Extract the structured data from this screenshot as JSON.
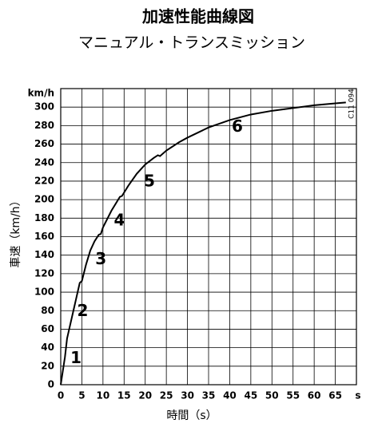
{
  "chart_data": {
    "type": "line",
    "title": "加速性能曲線図",
    "subtitle": "マニュアル・トランスミッション",
    "x_label": "時間（s）",
    "y_label": "車速（km/h）",
    "x_unit": "s",
    "y_unit": "km/h",
    "code": "C11 094",
    "color": "#000000",
    "grid": true,
    "x": [
      0,
      1,
      1.5,
      2,
      3,
      4,
      4.5,
      5,
      6,
      7,
      8,
      9,
      9.5,
      10,
      12,
      14,
      14.5,
      16,
      18,
      20,
      22,
      23,
      23.5,
      25,
      28,
      30,
      35,
      40,
      45,
      50,
      55,
      60,
      65,
      67.5
    ],
    "values": [
      0,
      30,
      50,
      60,
      80,
      100,
      110,
      112,
      130,
      145,
      155,
      162,
      163,
      170,
      188,
      203,
      204,
      215,
      228,
      238,
      245,
      248,
      247,
      253,
      262,
      267,
      278,
      286,
      292,
      296,
      299,
      302,
      304,
      305
    ],
    "annotations": [
      {
        "text": "1",
        "x": 3.6,
        "y": 28
      },
      {
        "text": "2",
        "x": 5.2,
        "y": 79
      },
      {
        "text": "3",
        "x": 9.5,
        "y": 135
      },
      {
        "text": "4",
        "x": 13.9,
        "y": 177
      },
      {
        "text": "5",
        "x": 21,
        "y": 219
      },
      {
        "text": "6",
        "x": 41.8,
        "y": 278
      }
    ],
    "xlim": [
      0,
      70
    ],
    "ylim": [
      0,
      320
    ],
    "xticks": [
      0,
      5,
      10,
      15,
      20,
      25,
      30,
      35,
      40,
      45,
      50,
      55,
      60,
      65
    ],
    "yticks": [
      0,
      20,
      40,
      60,
      80,
      100,
      120,
      140,
      160,
      180,
      200,
      220,
      240,
      260,
      280,
      300
    ]
  }
}
